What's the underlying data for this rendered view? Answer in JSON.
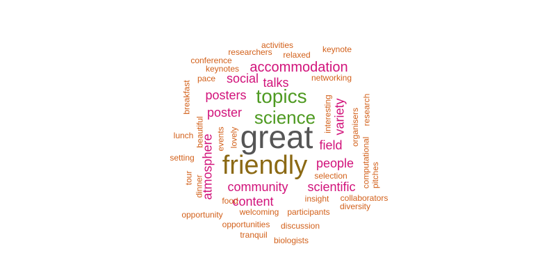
{
  "palette": {
    "grey": "#555555",
    "brown": "#8B6914",
    "green": "#4E9A21",
    "magenta": "#D1127A",
    "orange": "#D2601A"
  },
  "words": [
    {
      "text": "great",
      "color": "grey"
    },
    {
      "text": "friendly",
      "color": "brown"
    },
    {
      "text": "topics",
      "color": "green"
    },
    {
      "text": "science",
      "color": "green"
    },
    {
      "text": "accommodation",
      "color": "magenta"
    },
    {
      "text": "posters",
      "color": "magenta"
    },
    {
      "text": "social",
      "color": "magenta"
    },
    {
      "text": "talks",
      "color": "magenta"
    },
    {
      "text": "poster",
      "color": "magenta"
    },
    {
      "text": "variety",
      "color": "magenta"
    },
    {
      "text": "atmosphere",
      "color": "magenta"
    },
    {
      "text": "field",
      "color": "magenta"
    },
    {
      "text": "people",
      "color": "magenta"
    },
    {
      "text": "community",
      "color": "magenta"
    },
    {
      "text": "scientific",
      "color": "magenta"
    },
    {
      "text": "content",
      "color": "magenta"
    },
    {
      "text": "activities",
      "color": "orange"
    },
    {
      "text": "researchers",
      "color": "orange"
    },
    {
      "text": "relaxed",
      "color": "orange"
    },
    {
      "text": "keynote",
      "color": "orange"
    },
    {
      "text": "conference",
      "color": "orange"
    },
    {
      "text": "keynotes",
      "color": "orange"
    },
    {
      "text": "pace",
      "color": "orange"
    },
    {
      "text": "networking",
      "color": "orange"
    },
    {
      "text": "breakfast",
      "color": "orange"
    },
    {
      "text": "beautiful",
      "color": "orange"
    },
    {
      "text": "events",
      "color": "orange"
    },
    {
      "text": "lovely",
      "color": "orange"
    },
    {
      "text": "interesting",
      "color": "orange"
    },
    {
      "text": "organisers",
      "color": "orange"
    },
    {
      "text": "research",
      "color": "orange"
    },
    {
      "text": "computational",
      "color": "orange"
    },
    {
      "text": "pitches",
      "color": "orange"
    },
    {
      "text": "lunch",
      "color": "orange"
    },
    {
      "text": "setting",
      "color": "orange"
    },
    {
      "text": "tour",
      "color": "orange"
    },
    {
      "text": "dinner",
      "color": "orange"
    },
    {
      "text": "selection",
      "color": "orange"
    },
    {
      "text": "food",
      "color": "orange"
    },
    {
      "text": "insight",
      "color": "orange"
    },
    {
      "text": "collaborators",
      "color": "orange"
    },
    {
      "text": "diversity",
      "color": "orange"
    },
    {
      "text": "opportunity",
      "color": "orange"
    },
    {
      "text": "welcoming",
      "color": "orange"
    },
    {
      "text": "participants",
      "color": "orange"
    },
    {
      "text": "opportunities",
      "color": "orange"
    },
    {
      "text": "discussion",
      "color": "orange"
    },
    {
      "text": "tranquil",
      "color": "orange"
    },
    {
      "text": "biologists",
      "color": "orange"
    }
  ]
}
